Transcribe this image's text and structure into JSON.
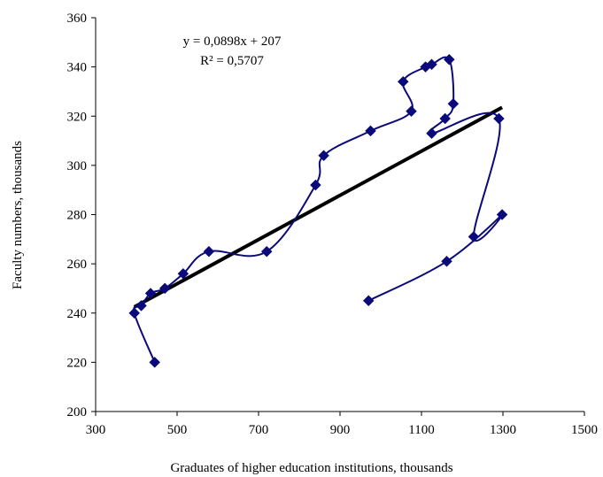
{
  "chart_data": {
    "type": "scatter",
    "title": "",
    "xlabel": "Graduates of higher education institutions, thousands",
    "ylabel": "Faculty numbers, thousands",
    "xlim": [
      300,
      1500
    ],
    "ylim": [
      200,
      360
    ],
    "x_ticks": [
      "300",
      "500",
      "700",
      "900",
      "1100",
      "1300",
      "1500"
    ],
    "y_ticks": [
      "200",
      "220",
      "240",
      "260",
      "280",
      "300",
      "320",
      "340",
      "360"
    ],
    "grid": false,
    "legend": "none",
    "series": [
      {
        "color": "#0a0a7a",
        "marker": "diamond",
        "smooth": true,
        "points": [
          [
            445,
            220
          ],
          [
            395,
            240
          ],
          [
            412,
            243
          ],
          [
            435,
            248
          ],
          [
            470,
            250
          ],
          [
            515,
            256
          ],
          [
            578,
            265
          ],
          [
            720,
            265
          ],
          [
            840,
            292
          ],
          [
            860,
            304
          ],
          [
            975,
            314
          ],
          [
            1075,
            322
          ],
          [
            1055,
            334
          ],
          [
            1110,
            340
          ],
          [
            1125,
            341
          ],
          [
            1168,
            343
          ],
          [
            1178,
            325
          ],
          [
            1158,
            319
          ],
          [
            1125,
            313
          ],
          [
            1290,
            319
          ],
          [
            1228,
            271
          ],
          [
            1298,
            280
          ],
          [
            1162,
            261
          ],
          [
            970,
            245
          ]
        ]
      }
    ],
    "trendline": {
      "type": "linear",
      "color": "#000000",
      "slope": 0.0898,
      "intercept": 207,
      "x_range": [
        395,
        1298
      ],
      "equation_label": "y = 0,0898x + 207",
      "r2_label": "R² = 0,5707"
    }
  }
}
